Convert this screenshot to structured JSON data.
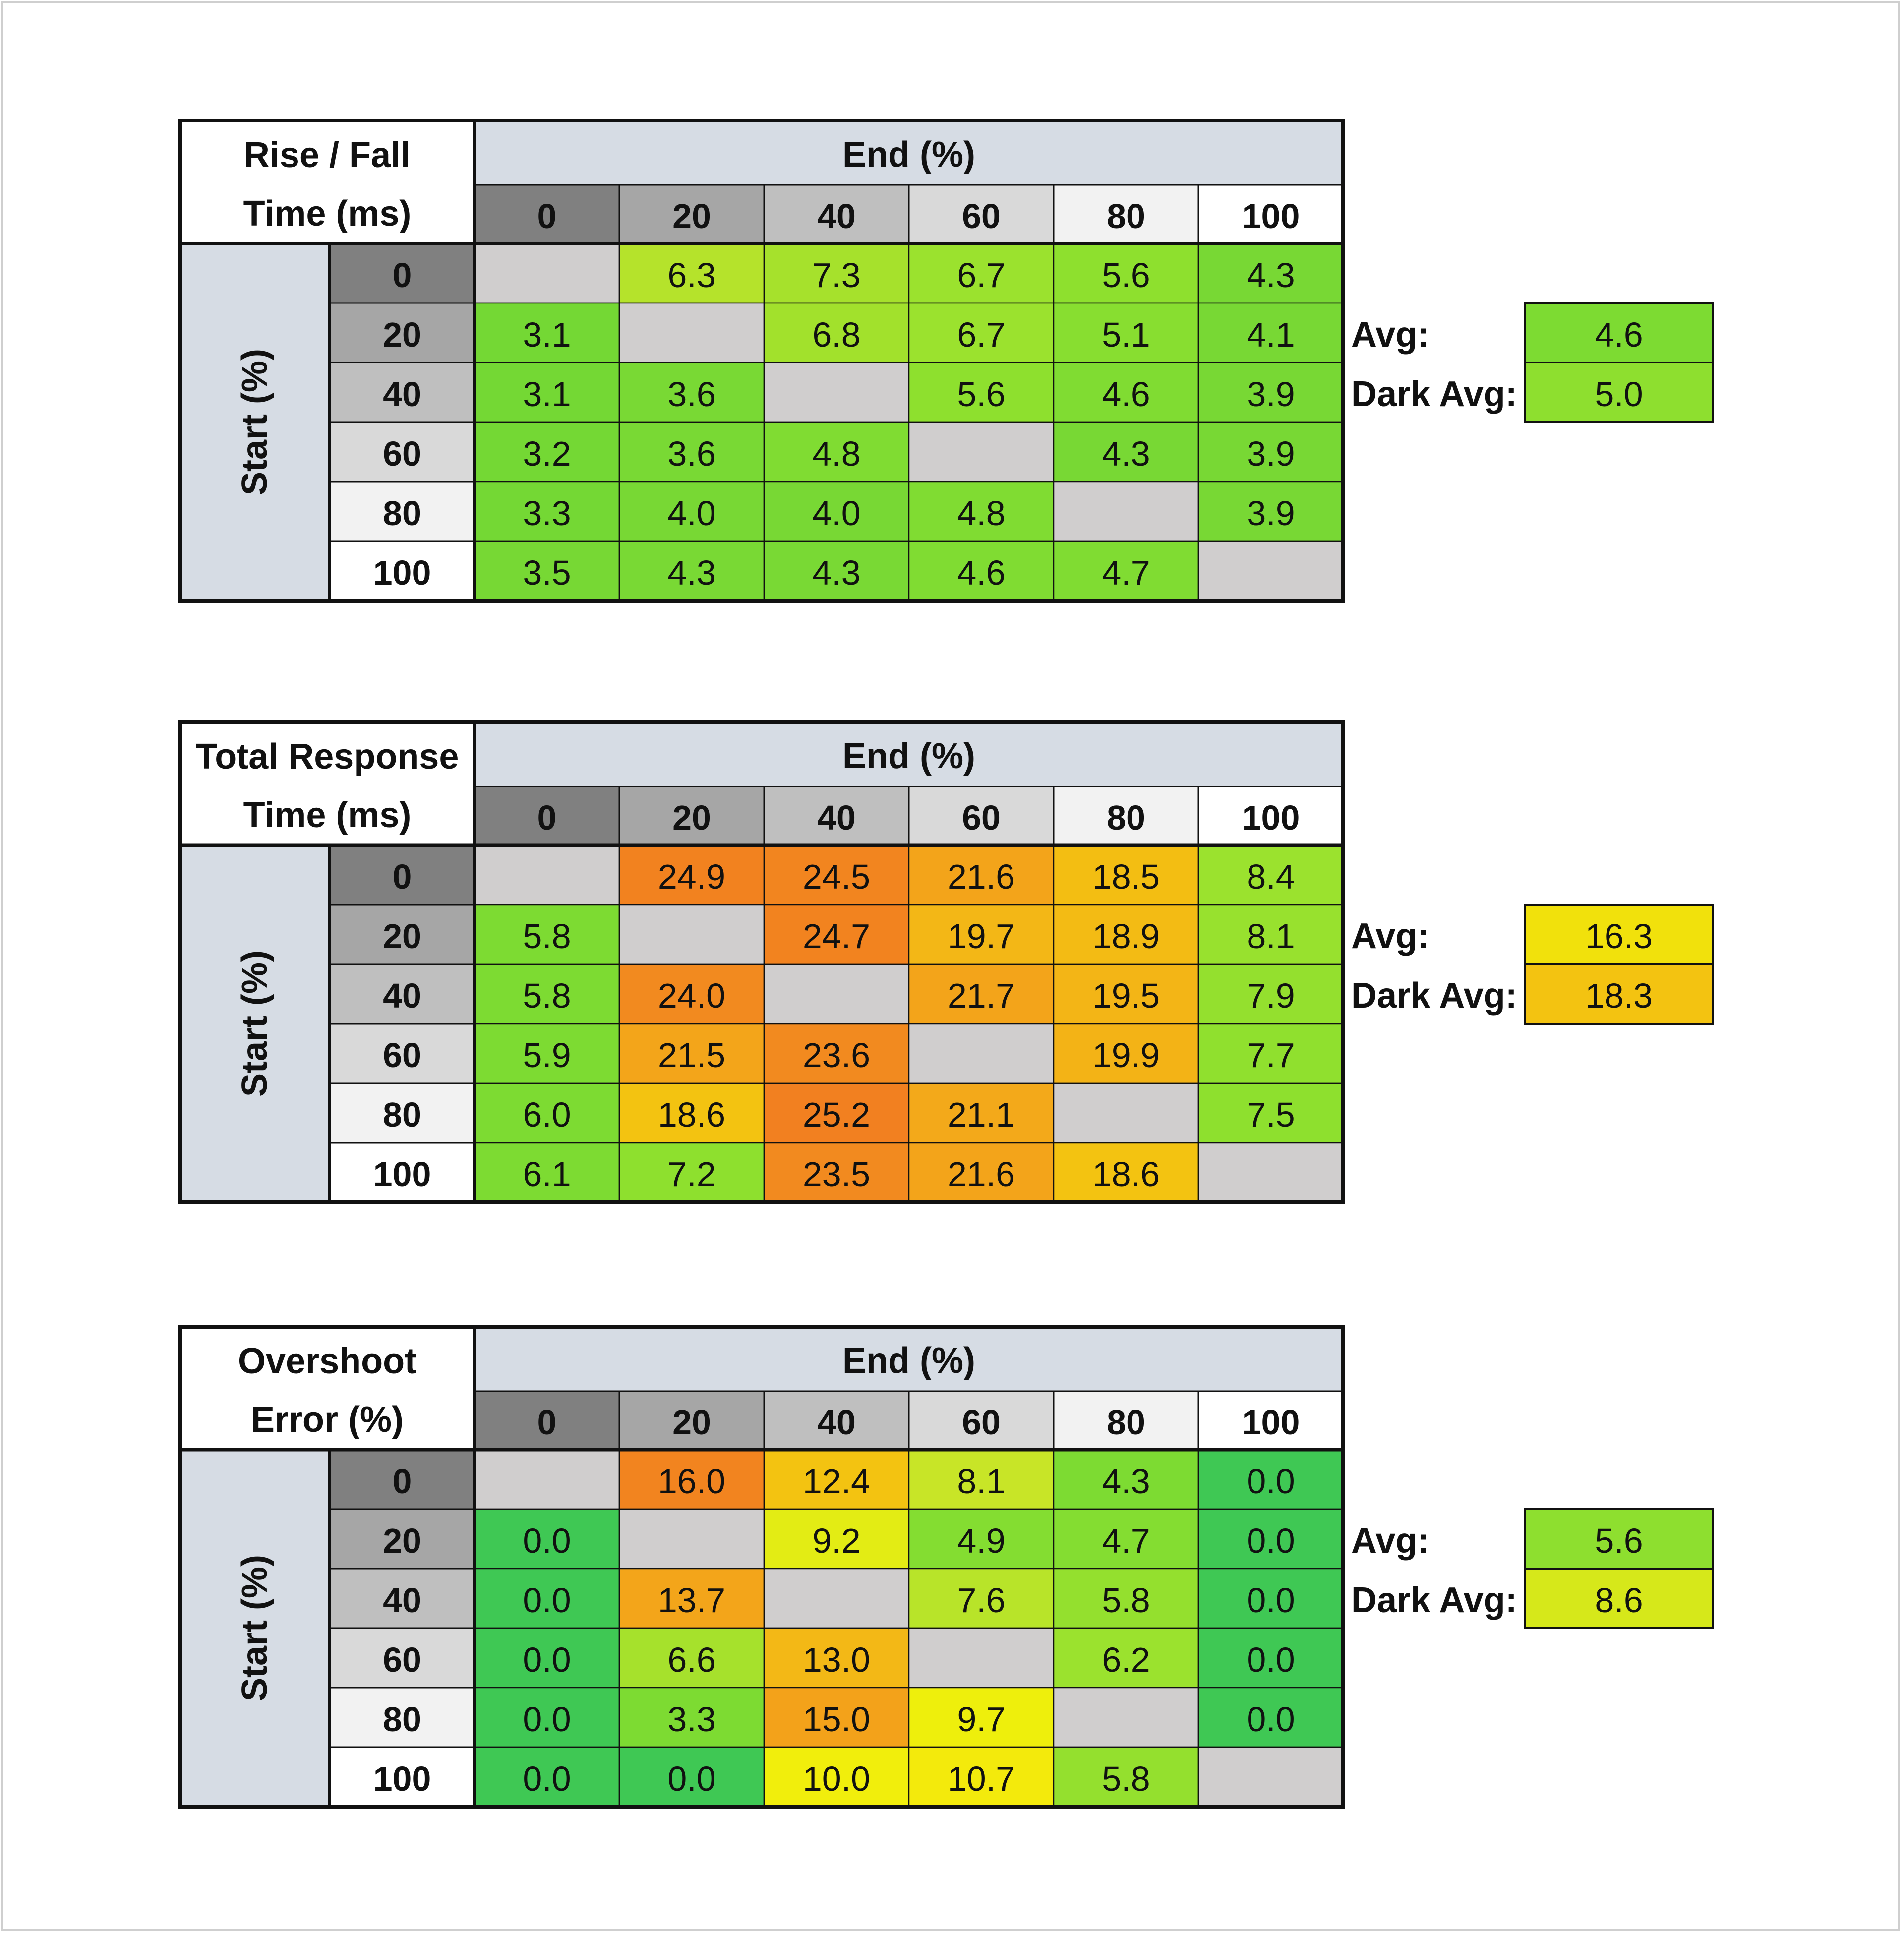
{
  "chart_data": [
    {
      "type": "heatmap",
      "title_lines": [
        "Rise / Fall",
        "Time (ms)"
      ],
      "column_header": "End (%)",
      "row_header": "Start (%)",
      "columns": [
        "0",
        "20",
        "40",
        "60",
        "80",
        "100"
      ],
      "rows": [
        "0",
        "20",
        "40",
        "60",
        "80",
        "100"
      ],
      "values": [
        [
          null,
          "6.3",
          "7.3",
          "6.7",
          "5.6",
          "4.3"
        ],
        [
          "3.1",
          null,
          "6.8",
          "6.7",
          "5.1",
          "4.1"
        ],
        [
          "3.1",
          "3.6",
          null,
          "5.6",
          "4.6",
          "3.9"
        ],
        [
          "3.2",
          "3.6",
          "4.8",
          null,
          "4.3",
          "3.9"
        ],
        [
          "3.3",
          "4.0",
          "4.0",
          "4.8",
          null,
          "3.9"
        ],
        [
          "3.5",
          "4.3",
          "4.3",
          "4.6",
          "4.7",
          null
        ]
      ],
      "colors": [
        [
          null,
          "#b5e32b",
          "#a6e12c",
          "#9be22e",
          "#8ee02e",
          "#78d834"
        ],
        [
          "#74d834",
          null,
          "#a2e12c",
          "#9be22e",
          "#88de30",
          "#78d834"
        ],
        [
          "#74d834",
          "#79d934",
          null,
          "#8ee02e",
          "#80dc32",
          "#78d834"
        ],
        [
          "#74d834",
          "#79d934",
          "#80dc32",
          null,
          "#78d834",
          "#78d834"
        ],
        [
          "#74d834",
          "#78d834",
          "#78d834",
          "#80dc32",
          null,
          "#78d834"
        ],
        [
          "#77d834",
          "#79d934",
          "#79d934",
          "#80dc32",
          "#80dc32",
          null
        ]
      ],
      "summary": [
        {
          "label": "Avg:",
          "value": "4.6",
          "color": "#7ddb32"
        },
        {
          "label": "Dark Avg:",
          "value": "5.0",
          "color": "#8edf2f"
        }
      ]
    },
    {
      "type": "heatmap",
      "title_lines": [
        "Total Response",
        "Time (ms)"
      ],
      "column_header": "End (%)",
      "row_header": "Start (%)",
      "columns": [
        "0",
        "20",
        "40",
        "60",
        "80",
        "100"
      ],
      "rows": [
        "0",
        "20",
        "40",
        "60",
        "80",
        "100"
      ],
      "values": [
        [
          null,
          "24.9",
          "24.5",
          "21.6",
          "18.5",
          "8.4"
        ],
        [
          "5.8",
          null,
          "24.7",
          "19.7",
          "18.9",
          "8.1"
        ],
        [
          "5.8",
          "24.0",
          null,
          "21.7",
          "19.5",
          "7.9"
        ],
        [
          "5.9",
          "21.5",
          "23.6",
          null,
          "19.9",
          "7.7"
        ],
        [
          "6.0",
          "18.6",
          "25.2",
          "21.1",
          null,
          "7.5"
        ],
        [
          "6.1",
          "7.2",
          "23.5",
          "21.6",
          "18.6",
          null
        ]
      ],
      "colors": [
        [
          null,
          "#f2821f",
          "#f2851f",
          "#f3a41a",
          "#f3be12",
          "#9be22e"
        ],
        [
          "#7ddb32",
          null,
          "#f2831f",
          "#f3b716",
          "#f3bb14",
          "#98e12e"
        ],
        [
          "#7ddb32",
          "#f28a1f",
          null,
          "#f3a41a",
          "#f3b516",
          "#94e02e"
        ],
        [
          "#7ddb32",
          "#f3a51a",
          "#f28a1f",
          null,
          "#f3b316",
          "#90e02e"
        ],
        [
          "#7ddb32",
          "#f3c311",
          "#f28020",
          "#f3a91a",
          null,
          "#8ee02e"
        ],
        [
          "#7ddb32",
          "#8ee02e",
          "#f28a1f",
          "#f3a41a",
          "#f3c311",
          null
        ]
      ],
      "summary": [
        {
          "label": "Avg:",
          "value": "16.3",
          "color": "#f1e10c"
        },
        {
          "label": "Dark Avg:",
          "value": "18.3",
          "color": "#f3c311"
        }
      ]
    },
    {
      "type": "heatmap",
      "title_lines": [
        "Overshoot",
        "Error (%)"
      ],
      "column_header": "End (%)",
      "row_header": "Start (%)",
      "columns": [
        "0",
        "20",
        "40",
        "60",
        "80",
        "100"
      ],
      "rows": [
        "0",
        "20",
        "40",
        "60",
        "80",
        "100"
      ],
      "values": [
        [
          null,
          "16.0",
          "12.4",
          "8.1",
          "4.3",
          "0.0"
        ],
        [
          "0.0",
          null,
          "9.2",
          "4.9",
          "4.7",
          "0.0"
        ],
        [
          "0.0",
          "13.7",
          null,
          "7.6",
          "5.8",
          "0.0"
        ],
        [
          "0.0",
          "6.6",
          "13.0",
          null,
          "6.2",
          "0.0"
        ],
        [
          "0.0",
          "3.3",
          "15.0",
          "9.7",
          null,
          "0.0"
        ],
        [
          "0.0",
          "0.0",
          "10.0",
          "10.7",
          "5.8",
          null
        ]
      ],
      "colors": [
        [
          null,
          "#f2841f",
          "#f3c311",
          "#c8e527",
          "#7ddb32",
          "#3fc854"
        ],
        [
          "#3fc854",
          null,
          "#e3ec14",
          "#84dd31",
          "#84dd31",
          "#3fc854"
        ],
        [
          "#3fc854",
          "#f3a51a",
          null,
          "#b8e429",
          "#94e02e",
          "#3fc854"
        ],
        [
          "#3fc854",
          "#a6e12c",
          "#f3b816",
          null,
          "#9be22e",
          "#3fc854"
        ],
        [
          "#3fc854",
          "#7ddb32",
          "#f3a21a",
          "#eeef0c",
          null,
          "#3fc854"
        ],
        [
          "#3fc854",
          "#3fc854",
          "#f1ee0c",
          "#f3ea0c",
          "#94e02e",
          null
        ]
      ],
      "summary": [
        {
          "label": "Avg:",
          "value": "5.6",
          "color": "#8edf2f"
        },
        {
          "label": "Dark Avg:",
          "value": "8.6",
          "color": "#d6e81a"
        }
      ]
    }
  ],
  "colors": {
    "header_fill": "#d6dce4",
    "diagonal_fill": "#d0cece",
    "border": "#111111",
    "scale_0": "#808080",
    "scale_20": "#a6a6a6",
    "scale_40": "#bfbfbf",
    "scale_60": "#d9d9d9",
    "scale_80": "#f2f2f2",
    "scale_100": "#ffffff"
  }
}
